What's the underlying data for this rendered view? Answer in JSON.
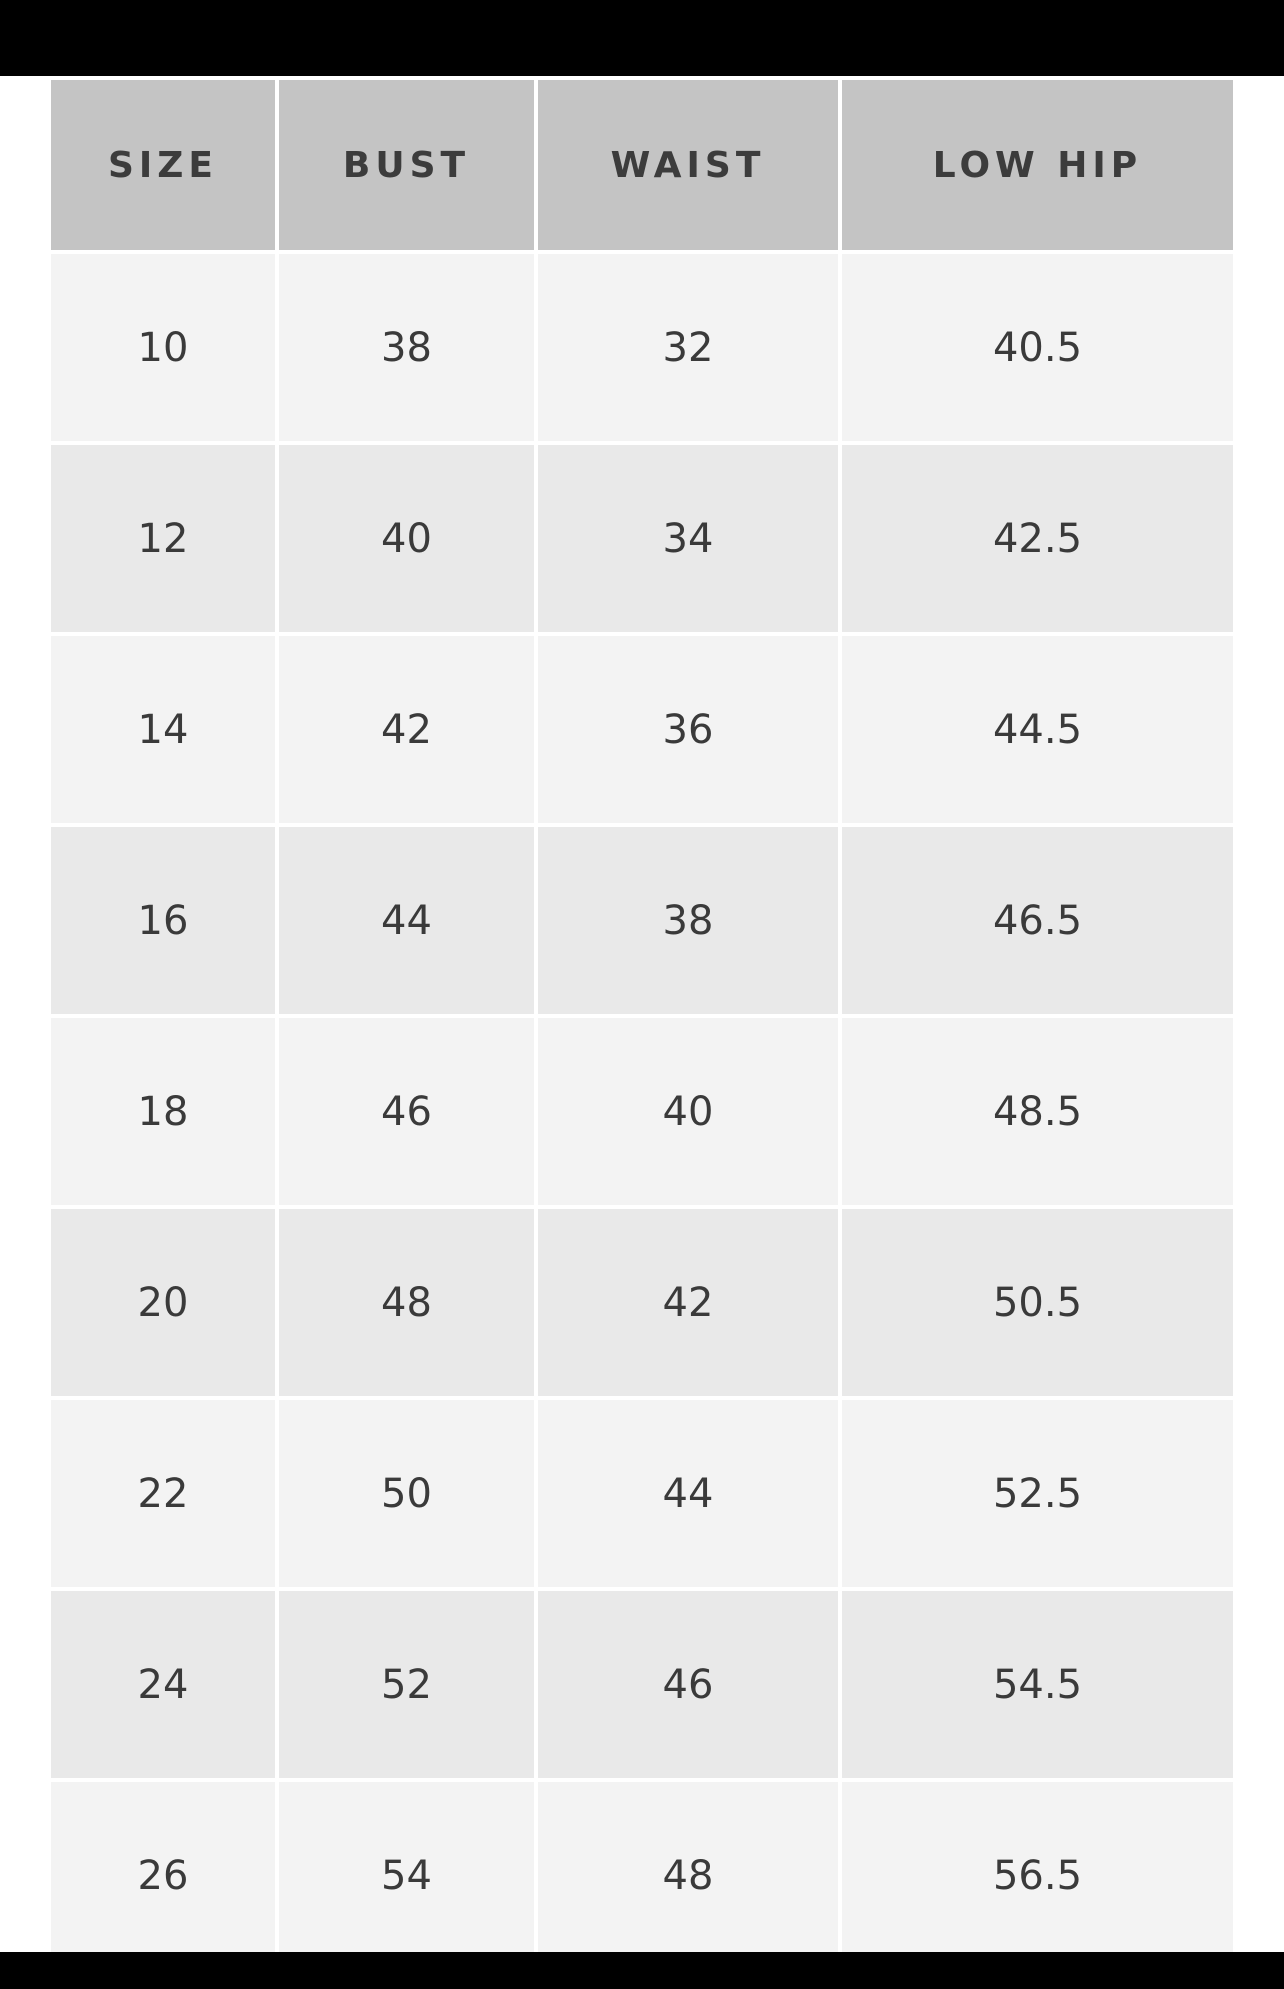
{
  "table": {
    "header": [
      "SIZE",
      "BUST",
      "WAIST",
      "LOW HIP"
    ],
    "rows": [
      [
        "10",
        "38",
        "32",
        "40.5"
      ],
      [
        "12",
        "40",
        "34",
        "42.5"
      ],
      [
        "14",
        "42",
        "36",
        "44.5"
      ],
      [
        "16",
        "44",
        "38",
        "46.5"
      ],
      [
        "18",
        "46",
        "40",
        "48.5"
      ],
      [
        "20",
        "48",
        "42",
        "50.5"
      ],
      [
        "22",
        "50",
        "44",
        "52.5"
      ],
      [
        "24",
        "52",
        "46",
        "54.5"
      ],
      [
        "26",
        "54",
        "48",
        "56.5"
      ]
    ]
  }
}
